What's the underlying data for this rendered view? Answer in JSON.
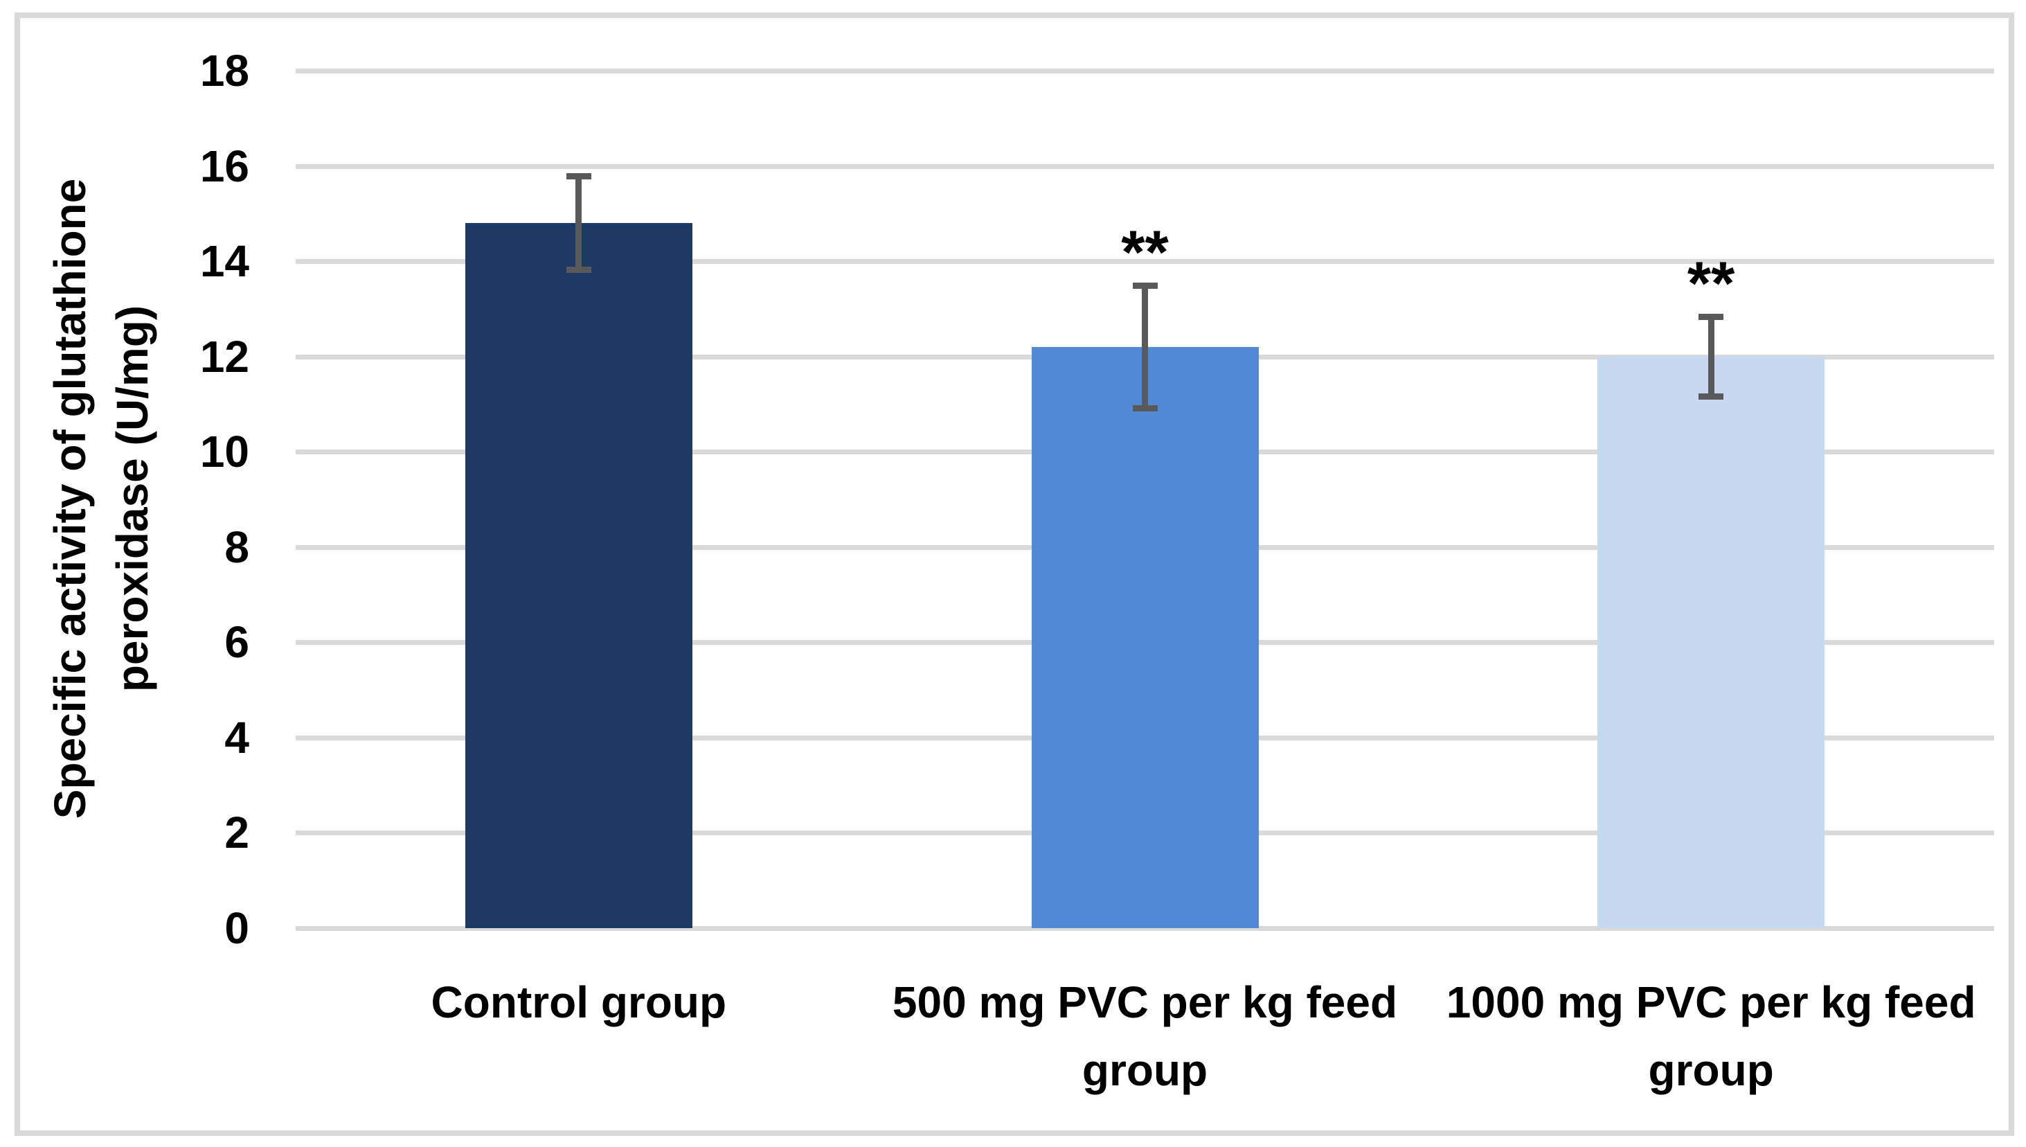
{
  "chart_data": {
    "type": "bar",
    "title": "",
    "ylabel": "Specific activity of glutathione peroxidase (U/mg)",
    "ylabel_lines": [
      "Specific activity of glutathione",
      "peroxidase (U/mg)"
    ],
    "categories": [
      "Control group",
      "500 mg PVC per kg feed group",
      "1000 mg PVC per kg feed group"
    ],
    "values": [
      14.8,
      12.2,
      12.0
    ],
    "error_bars": [
      1.05,
      1.35,
      0.9
    ],
    "annotations": [
      "",
      "**",
      "**"
    ],
    "bar_colors": [
      "#1C3A63",
      "#5289D5",
      "#C6D9F1"
    ],
    "ylim": [
      0,
      18
    ],
    "yticks": [
      0,
      2,
      4,
      6,
      8,
      10,
      12,
      14,
      16,
      18
    ],
    "grid": true,
    "legend_position": "none",
    "colors": {
      "gridline": "#D9D9D9",
      "frame_border": "#D9D9D9",
      "error_bar": "#595959",
      "text": "#000000",
      "background": "#FFFFFF"
    }
  }
}
